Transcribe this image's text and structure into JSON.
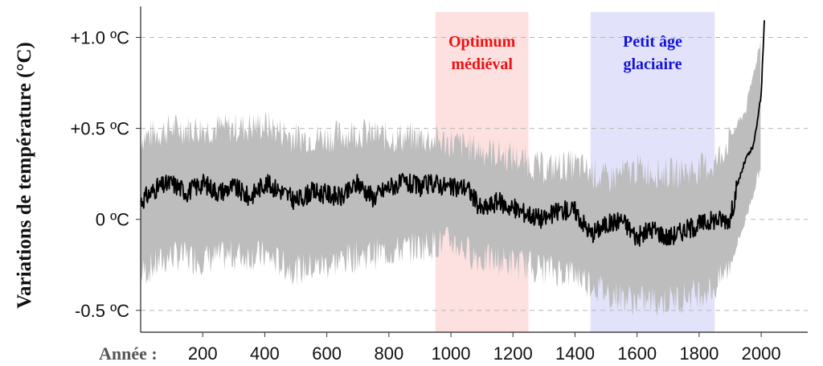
{
  "chart_data": {
    "type": "line",
    "title": "",
    "xlabel": "Année :",
    "ylabel": "Variations de température (°C)",
    "xlim": [
      0,
      2150
    ],
    "ylim": [
      -0.62,
      1.17
    ],
    "xticks": [
      {
        "value": 200,
        "label": "200"
      },
      {
        "value": 400,
        "label": "400"
      },
      {
        "value": 600,
        "label": "600"
      },
      {
        "value": 800,
        "label": "800"
      },
      {
        "value": 1000,
        "label": "1000"
      },
      {
        "value": 1200,
        "label": "1200"
      },
      {
        "value": 1400,
        "label": "1400"
      },
      {
        "value": 1600,
        "label": "1600"
      },
      {
        "value": 1800,
        "label": "1800"
      },
      {
        "value": 2000,
        "label": "2000"
      }
    ],
    "yticks": [
      {
        "value": 1.0,
        "label": "+1.0 ºC"
      },
      {
        "value": 0.5,
        "label": "+0.5 ºC"
      },
      {
        "value": 0.0,
        "label": "0 ºC"
      },
      {
        "value": -0.5,
        "label": "-0.5 ºC"
      }
    ],
    "grid": {
      "horizontal": true,
      "style": "dashed"
    },
    "bands": [
      {
        "label_lines": [
          "Optimum",
          "médiéval"
        ],
        "x_start": 950,
        "x_end": 1250,
        "fill": "#fde0e0",
        "text_color": "#ee1111"
      },
      {
        "label_lines": [
          "Petit âge",
          "glaciaire"
        ],
        "x_start": 1450,
        "x_end": 1850,
        "fill": "#e2e2fb",
        "text_color": "#1414d6"
      }
    ],
    "series": [
      {
        "role": "mean",
        "color": "#000000",
        "x": [
          0,
          50,
          100,
          150,
          200,
          250,
          300,
          350,
          400,
          450,
          500,
          550,
          600,
          650,
          700,
          750,
          800,
          850,
          900,
          950,
          1000,
          1050,
          1100,
          1150,
          1200,
          1250,
          1300,
          1350,
          1400,
          1450,
          1500,
          1550,
          1600,
          1650,
          1700,
          1750,
          1800,
          1850,
          1900,
          1925,
          1950,
          1975,
          2000,
          2010
        ],
        "y": [
          0.1,
          0.17,
          0.2,
          0.15,
          0.2,
          0.15,
          0.18,
          0.12,
          0.2,
          0.16,
          0.1,
          0.15,
          0.14,
          0.12,
          0.2,
          0.12,
          0.18,
          0.2,
          0.18,
          0.2,
          0.17,
          0.18,
          0.05,
          0.1,
          0.06,
          0.03,
          0.0,
          0.05,
          0.05,
          -0.08,
          -0.03,
          0.0,
          -0.1,
          -0.05,
          -0.1,
          -0.06,
          -0.03,
          0.0,
          0.0,
          0.2,
          0.33,
          0.4,
          0.68,
          1.1
        ]
      },
      {
        "role": "uncertainty",
        "color": "#bdbdbd",
        "x": [
          0,
          100,
          200,
          300,
          400,
          500,
          600,
          700,
          800,
          900,
          1000,
          1100,
          1200,
          1300,
          1400,
          1500,
          1600,
          1700,
          1800,
          1850,
          1900,
          1950,
          2000
        ],
        "upper": [
          0.45,
          0.5,
          0.5,
          0.5,
          0.52,
          0.45,
          0.45,
          0.48,
          0.45,
          0.45,
          0.42,
          0.38,
          0.34,
          0.28,
          0.3,
          0.22,
          0.28,
          0.25,
          0.28,
          0.3,
          0.45,
          0.6,
          1.0
        ],
        "lower": [
          -0.3,
          -0.2,
          -0.22,
          -0.2,
          -0.2,
          -0.28,
          -0.25,
          -0.2,
          -0.18,
          -0.15,
          -0.12,
          -0.22,
          -0.24,
          -0.27,
          -0.3,
          -0.4,
          -0.45,
          -0.45,
          -0.4,
          -0.38,
          -0.25,
          0.0,
          0.3
        ]
      }
    ]
  }
}
